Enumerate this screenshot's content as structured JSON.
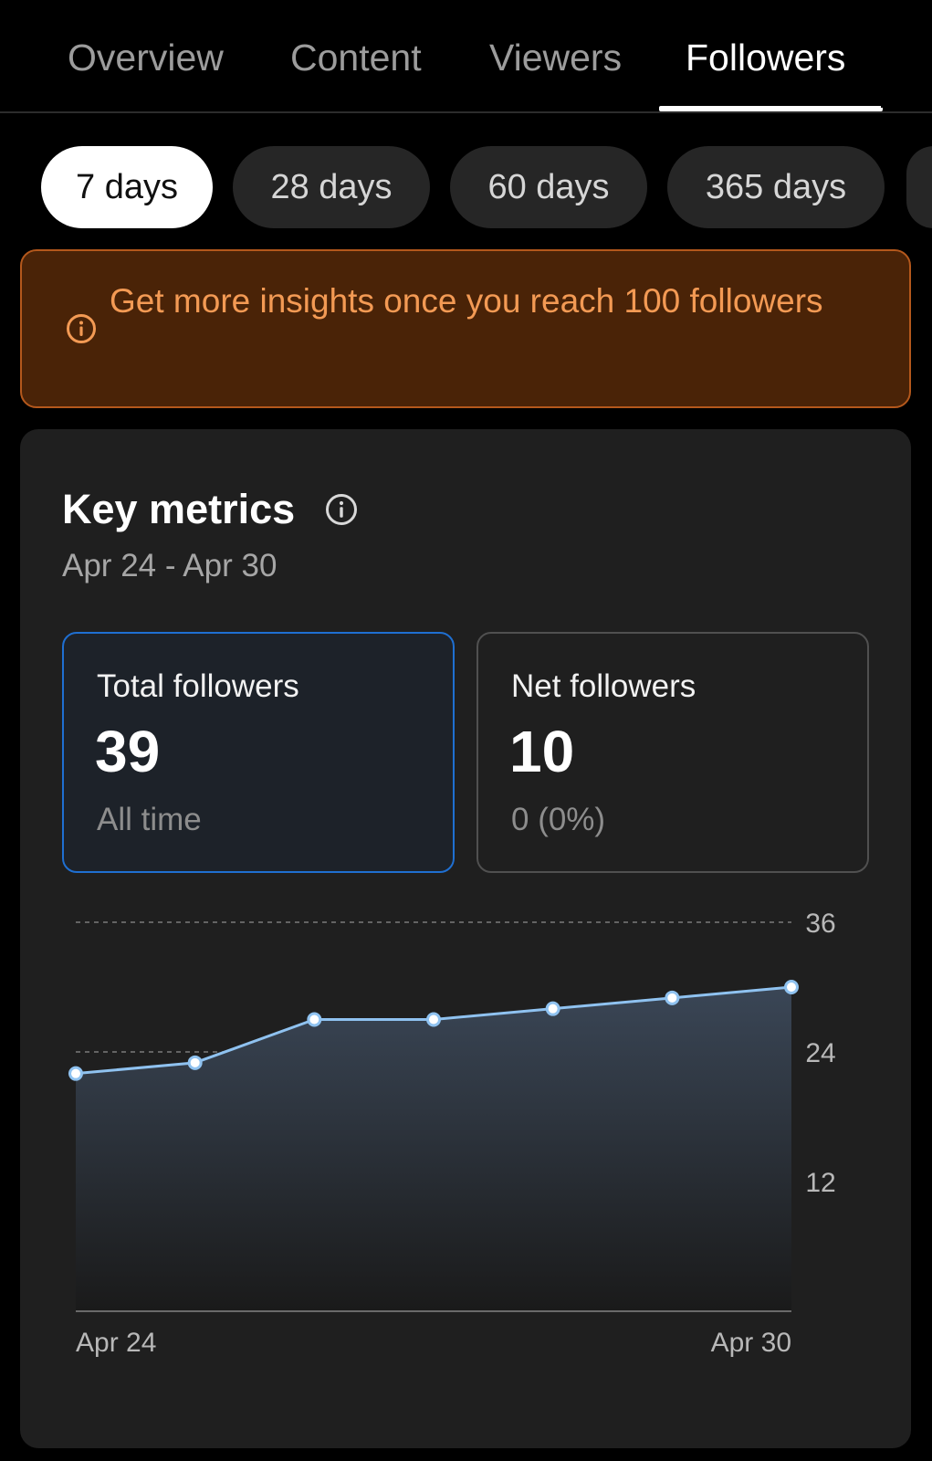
{
  "tabs": [
    {
      "label": "Overview",
      "active": false
    },
    {
      "label": "Content",
      "active": false
    },
    {
      "label": "Viewers",
      "active": false
    },
    {
      "label": "Followers",
      "active": true
    }
  ],
  "periods": [
    {
      "label": "7 days",
      "active": true
    },
    {
      "label": "28 days",
      "active": false
    },
    {
      "label": "60 days",
      "active": false
    },
    {
      "label": "365 days",
      "active": false
    }
  ],
  "banner": {
    "text": "Get more insights once you reach 100 followers",
    "icon": "info-icon",
    "background": "#4a2307",
    "text_color": "#f39a54"
  },
  "key_metrics": {
    "title": "Key metrics",
    "range": "Apr 24 - Apr 30",
    "cards": {
      "total": {
        "label": "Total followers",
        "value": "39",
        "sub": "All time"
      },
      "net": {
        "label": "Net followers",
        "value": "10",
        "sub": "0 (0%)"
      }
    }
  },
  "chart_data": {
    "type": "area",
    "x": [
      "Apr 24",
      "Apr 25",
      "Apr 26",
      "Apr 27",
      "Apr 28",
      "Apr 29",
      "Apr 30"
    ],
    "values": [
      22,
      23,
      27,
      27,
      28,
      29,
      30
    ],
    "x_tick_labels": [
      "Apr 24",
      "Apr 30"
    ],
    "y_ticks": [
      12,
      24,
      36
    ],
    "ylim": [
      0,
      36
    ],
    "grid": true,
    "line_color": "#8fc2f0",
    "title": "",
    "xlabel": "",
    "ylabel": ""
  }
}
